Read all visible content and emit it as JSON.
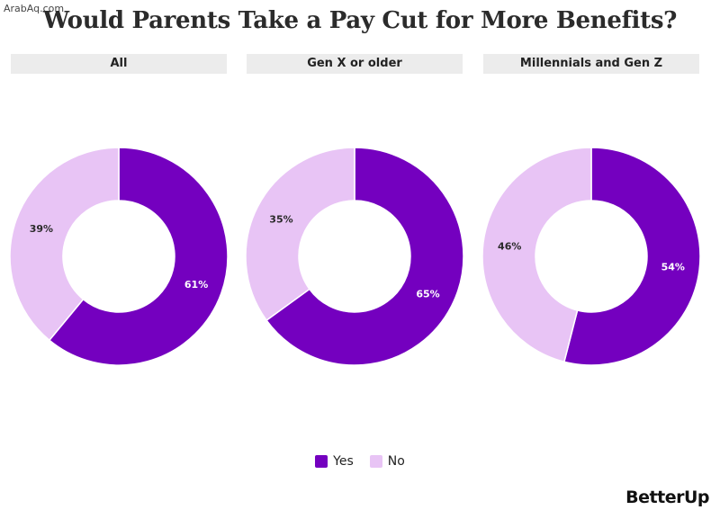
{
  "watermark": "ArabAq.com",
  "brand": "BetterUp",
  "colors": {
    "yes": "#7400bf",
    "no": "#e8c4f5"
  },
  "legend": [
    {
      "key": "yes",
      "label": "Yes"
    },
    {
      "key": "no",
      "label": "No"
    }
  ],
  "chart_data": {
    "type": "pie",
    "title": "Would Parents Take a Pay Cut for More Benefits?",
    "charts": [
      {
        "label": "All",
        "slices": [
          {
            "name": "Yes",
            "value": 61,
            "label": "61%"
          },
          {
            "name": "No",
            "value": 39,
            "label": "39%"
          }
        ]
      },
      {
        "label": "Gen X or older",
        "slices": [
          {
            "name": "Yes",
            "value": 65,
            "label": "65%"
          },
          {
            "name": "No",
            "value": 35,
            "label": "35%"
          }
        ]
      },
      {
        "label": "Millennials and Gen Z",
        "slices": [
          {
            "name": "Yes",
            "value": 54,
            "label": "54%"
          },
          {
            "name": "No",
            "value": 46,
            "label": "46%"
          }
        ]
      }
    ]
  }
}
